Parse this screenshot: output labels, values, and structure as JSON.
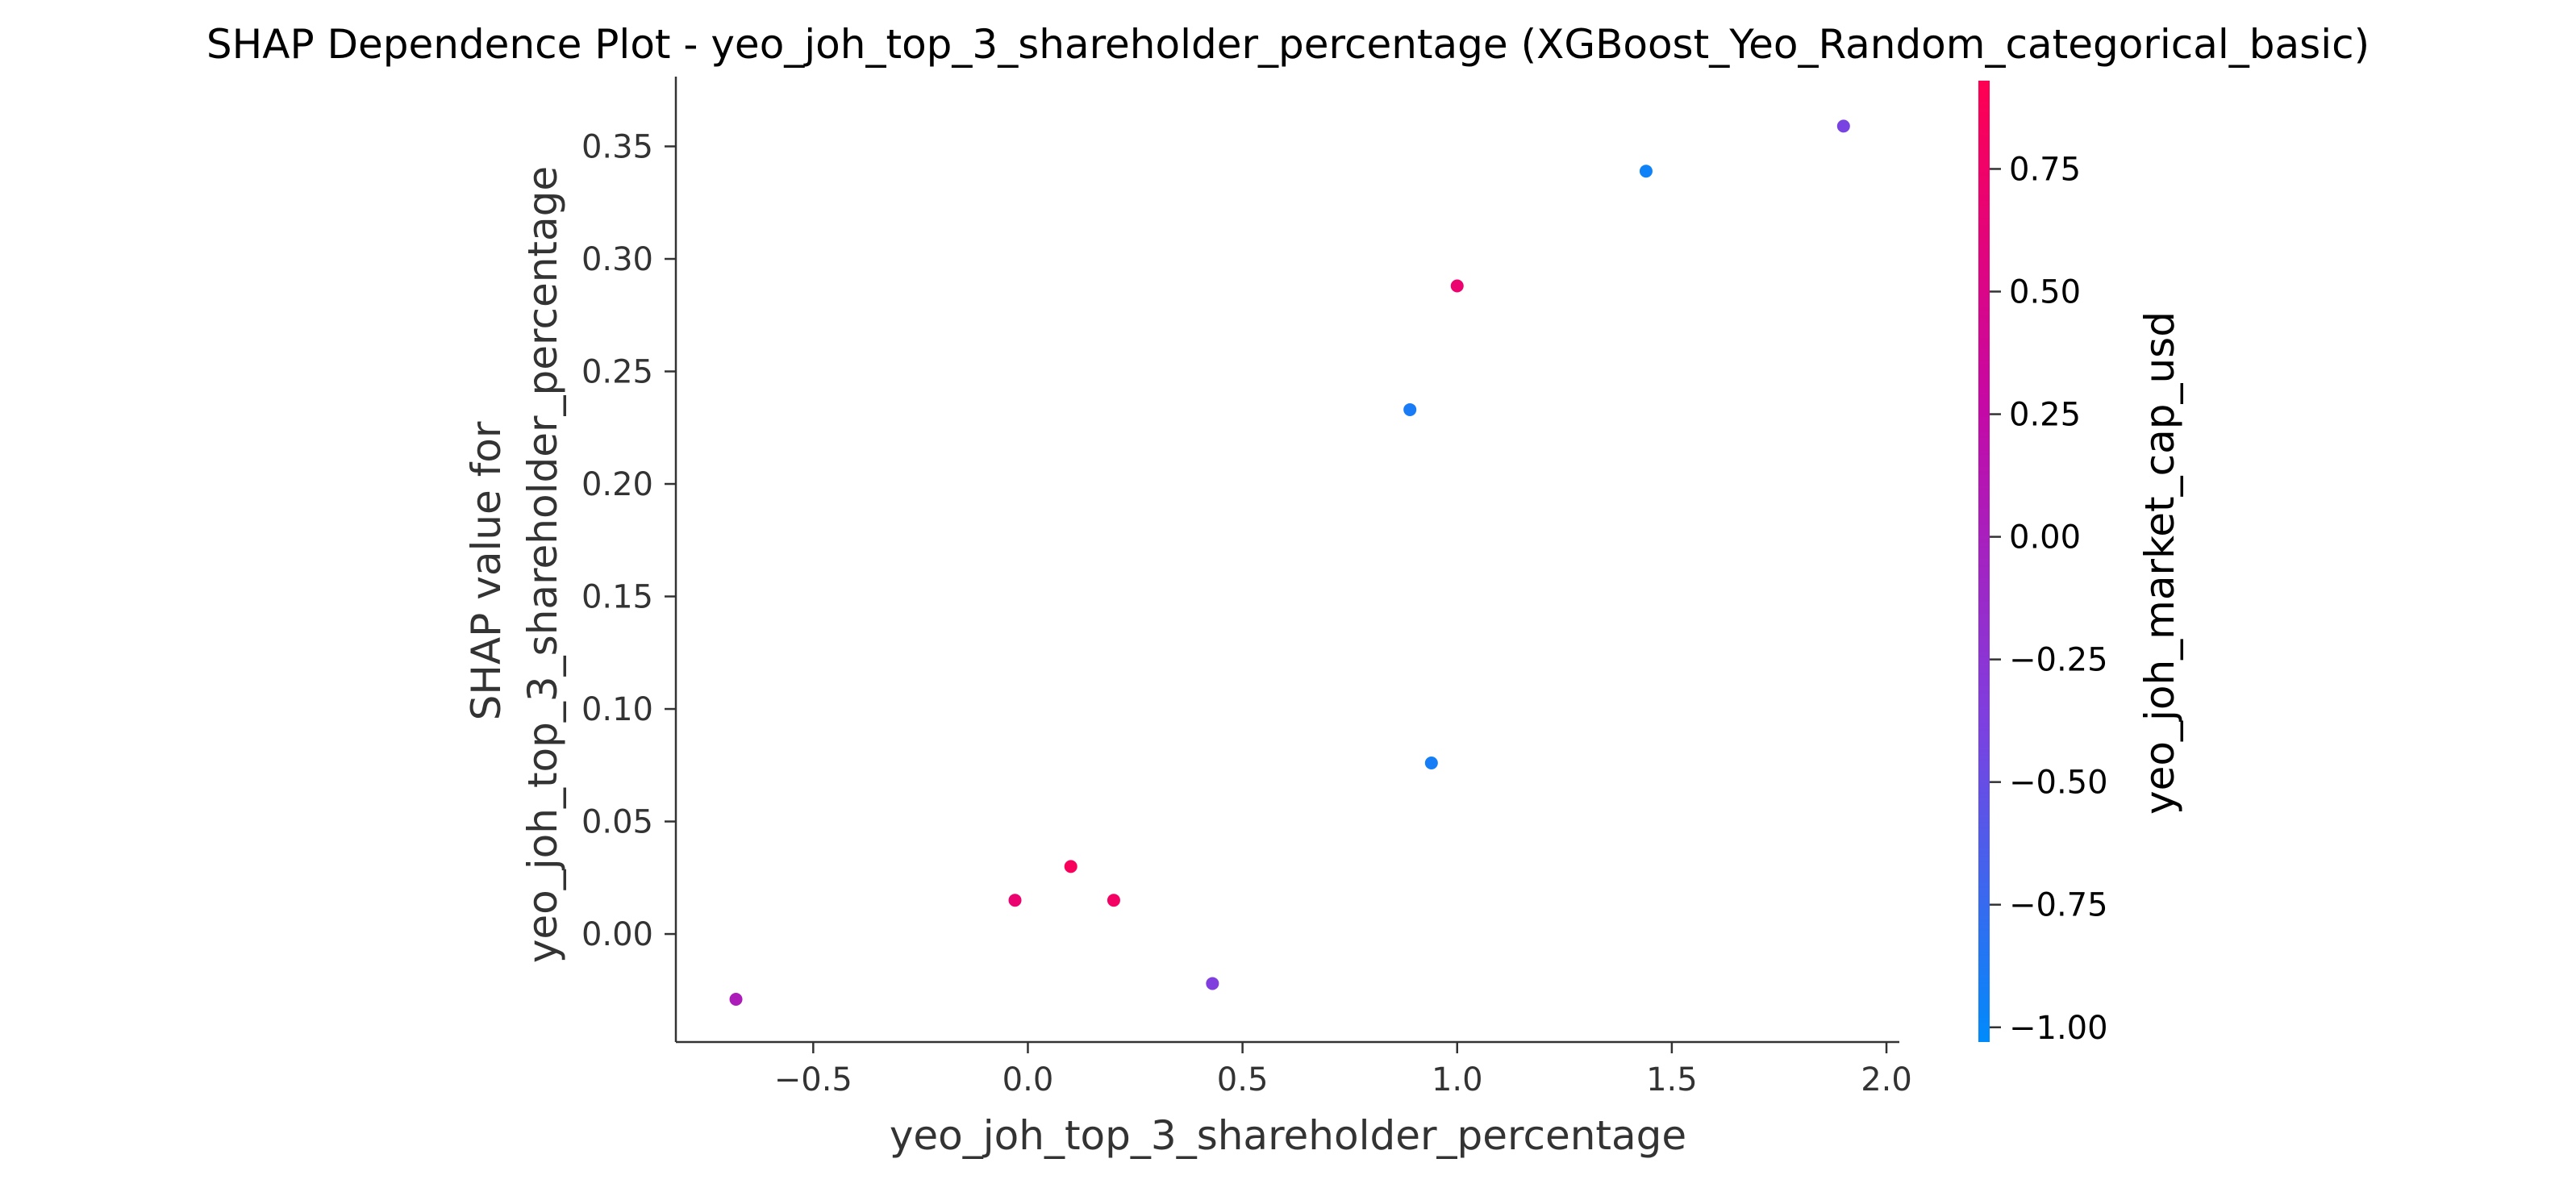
{
  "chart_data": {
    "type": "scatter",
    "title": "SHAP Dependence Plot - yeo_joh_top_3_shareholder_percentage (XGBoost_Yeo_Random_categorical_basic)",
    "xlabel": "yeo_joh_top_3_shareholder_percentage",
    "ylabel_lines": [
      "SHAP value for",
      "yeo_joh_top_3_shareholder_percentage"
    ],
    "xlim": [
      -0.82,
      2.03
    ],
    "ylim": [
      -0.048,
      0.381
    ],
    "x_ticks": [
      -0.5,
      0.0,
      0.5,
      1.0,
      1.5,
      2.0
    ],
    "x_tick_labels": [
      "−0.5",
      "0.0",
      "0.5",
      "1.0",
      "1.5",
      "2.0"
    ],
    "y_ticks": [
      0.0,
      0.05,
      0.1,
      0.15,
      0.2,
      0.25,
      0.3,
      0.35
    ],
    "y_tick_labels": [
      "0.00",
      "0.05",
      "0.10",
      "0.15",
      "0.20",
      "0.25",
      "0.30",
      "0.35"
    ],
    "grid": false,
    "colorbar": {
      "label": "yeo_joh_market_cap_usd",
      "range": [
        -1.03,
        0.93
      ],
      "ticks": [
        0.75,
        0.5,
        0.25,
        0.0,
        -0.25,
        -0.5,
        -0.75,
        -1.0
      ],
      "tick_labels": [
        "0.75",
        "0.50",
        "0.25",
        "0.00",
        "−0.25",
        "−0.50",
        "−0.75",
        "−1.00"
      ],
      "colormap": [
        "#008bfb",
        "#7d40e0",
        "#c509a5",
        "#ff0052"
      ]
    },
    "points": [
      {
        "x": -0.68,
        "y": -0.029,
        "c": 0.05
      },
      {
        "x": -0.03,
        "y": 0.015,
        "c": 0.7
      },
      {
        "x": 0.1,
        "y": 0.03,
        "c": 0.85
      },
      {
        "x": 0.2,
        "y": 0.015,
        "c": 0.8
      },
      {
        "x": 0.43,
        "y": -0.022,
        "c": -0.35
      },
      {
        "x": 0.89,
        "y": 0.233,
        "c": -0.9
      },
      {
        "x": 0.94,
        "y": 0.076,
        "c": -0.92
      },
      {
        "x": 1.0,
        "y": 0.288,
        "c": 0.7
      },
      {
        "x": 1.44,
        "y": 0.339,
        "c": -0.95
      },
      {
        "x": 1.9,
        "y": 0.359,
        "c": -0.4
      }
    ]
  }
}
